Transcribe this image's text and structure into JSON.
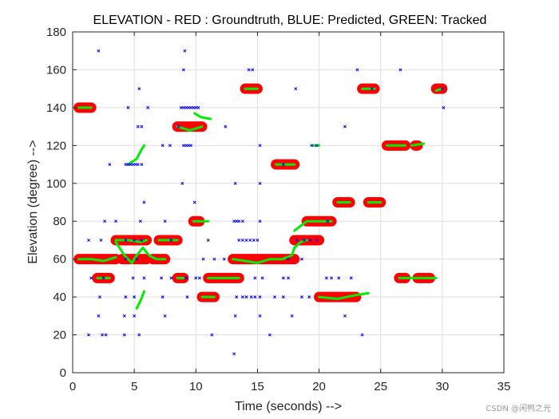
{
  "chart_data": {
    "type": "scatter",
    "title": "ELEVATION - RED : Groundtruth, BLUE: Predicted, GREEN: Tracked",
    "xlabel": "Time (seconds) -->",
    "ylabel": "Elevation (degree) -->",
    "xlim": [
      0,
      35
    ],
    "ylim": [
      0,
      180
    ],
    "xticks": [
      0,
      5,
      10,
      15,
      20,
      25,
      30,
      35
    ],
    "yticks": [
      0,
      20,
      40,
      60,
      80,
      100,
      120,
      140,
      160,
      180
    ],
    "grid": true,
    "colors": {
      "groundtruth": "#ff0000",
      "predicted": "#0000ff",
      "tracked": "#00ee00"
    },
    "series": [
      {
        "name": "Groundtruth",
        "color": "#ff0000",
        "segments": [
          {
            "x": [
              0.5,
              1.5
            ],
            "y": 140
          },
          {
            "x": [
              0.5,
              3.5
            ],
            "y": 60
          },
          {
            "x": [
              2.0,
              3.0
            ],
            "y": 50
          },
          {
            "x": [
              3.5,
              6.0
            ],
            "y": 70
          },
          {
            "x": [
              4.0,
              6.0
            ],
            "y": 60
          },
          {
            "x": [
              6.5,
              7.5
            ],
            "y": 60
          },
          {
            "x": [
              7.0,
              8.5
            ],
            "y": 70
          },
          {
            "x": [
              8.5,
              9.0
            ],
            "y": 50
          },
          {
            "x": [
              8.5,
              10.5
            ],
            "y": 130
          },
          {
            "x": [
              9.8,
              10.3
            ],
            "y": 80
          },
          {
            "x": [
              10.5,
              11.5
            ],
            "y": 40
          },
          {
            "x": [
              11.0,
              13.5
            ],
            "y": 50
          },
          {
            "x": [
              13.0,
              18.0
            ],
            "y": 60
          },
          {
            "x": [
              14.0,
              15.0
            ],
            "y": 150
          },
          {
            "x": [
              16.5,
              18.0
            ],
            "y": 110
          },
          {
            "x": [
              18.0,
              20.0
            ],
            "y": 70
          },
          {
            "x": [
              19.0,
              21.0
            ],
            "y": 80
          },
          {
            "x": [
              20.0,
              23.0
            ],
            "y": 40
          },
          {
            "x": [
              21.5,
              22.5
            ],
            "y": 90
          },
          {
            "x": [
              23.5,
              24.5
            ],
            "y": 150
          },
          {
            "x": [
              24.0,
              25.0
            ],
            "y": 90
          },
          {
            "x": [
              25.5,
              27.0
            ],
            "y": 120
          },
          {
            "x": [
              26.5,
              27.0
            ],
            "y": 50
          },
          {
            "x": [
              27.8,
              28.0
            ],
            "y": 120
          },
          {
            "x": [
              28.0,
              29.0
            ],
            "y": 50
          },
          {
            "x": [
              29.5,
              30.0
            ],
            "y": 150
          }
        ]
      },
      {
        "name": "Predicted",
        "color": "#0000ff",
        "points": [
          [
            2.1,
            170
          ],
          [
            9.1,
            170
          ],
          [
            9.0,
            160
          ],
          [
            14.3,
            160
          ],
          [
            14.6,
            160
          ],
          [
            23.1,
            160
          ],
          [
            26.6,
            160
          ],
          [
            5.4,
            150
          ],
          [
            18.1,
            150
          ],
          [
            24.3,
            150
          ],
          [
            30.0,
            150
          ],
          [
            4.5,
            140
          ],
          [
            6.1,
            140
          ],
          [
            8.8,
            140
          ],
          [
            9.0,
            140
          ],
          [
            9.2,
            140
          ],
          [
            9.4,
            140
          ],
          [
            9.6,
            140
          ],
          [
            9.8,
            140
          ],
          [
            10.0,
            140
          ],
          [
            10.2,
            140
          ],
          [
            30.1,
            140
          ],
          [
            5.3,
            130
          ],
          [
            5.6,
            130
          ],
          [
            8.6,
            130
          ],
          [
            12.4,
            130
          ],
          [
            22.1,
            130
          ],
          [
            7.3,
            120
          ],
          [
            7.9,
            120
          ],
          [
            9.0,
            120
          ],
          [
            9.2,
            120
          ],
          [
            9.4,
            120
          ],
          [
            9.6,
            120
          ],
          [
            15.2,
            120
          ],
          [
            19.4,
            120
          ],
          [
            19.8,
            120
          ],
          [
            3.0,
            110
          ],
          [
            4.3,
            110
          ],
          [
            4.5,
            110
          ],
          [
            4.7,
            110
          ],
          [
            4.9,
            110
          ],
          [
            5.1,
            110
          ],
          [
            5.3,
            110
          ],
          [
            5.6,
            110
          ],
          [
            17.1,
            110
          ],
          [
            8.9,
            100
          ],
          [
            13.2,
            100
          ],
          [
            15.2,
            100
          ],
          [
            5.8,
            90
          ],
          [
            9.9,
            90
          ],
          [
            2.6,
            80
          ],
          [
            3.5,
            80
          ],
          [
            5.5,
            80
          ],
          [
            7.5,
            80
          ],
          [
            13.1,
            80
          ],
          [
            13.3,
            80
          ],
          [
            13.5,
            80
          ],
          [
            13.8,
            80
          ],
          [
            15.2,
            80
          ],
          [
            20.7,
            80
          ],
          [
            1.3,
            70
          ],
          [
            2.3,
            70
          ],
          [
            4.3,
            70
          ],
          [
            5.0,
            70
          ],
          [
            5.6,
            70
          ],
          [
            8.0,
            70
          ],
          [
            11.0,
            70
          ],
          [
            13.5,
            70
          ],
          [
            13.8,
            70
          ],
          [
            14.1,
            70
          ],
          [
            14.4,
            70
          ],
          [
            14.7,
            70
          ],
          [
            15.0,
            70
          ],
          [
            18.2,
            70
          ],
          [
            18.8,
            70
          ],
          [
            19.3,
            70
          ],
          [
            19.8,
            70
          ],
          [
            4.3,
            60
          ],
          [
            5.2,
            60
          ],
          [
            10.6,
            60
          ],
          [
            11.5,
            60
          ],
          [
            12.3,
            60
          ],
          [
            17.5,
            60
          ],
          [
            18.6,
            60
          ],
          [
            1.5,
            50
          ],
          [
            2.5,
            50
          ],
          [
            4.9,
            50
          ],
          [
            5.8,
            50
          ],
          [
            7.2,
            50
          ],
          [
            8.0,
            50
          ],
          [
            9.2,
            50
          ],
          [
            10.0,
            50
          ],
          [
            10.3,
            50
          ],
          [
            14.8,
            50
          ],
          [
            15.4,
            50
          ],
          [
            17.1,
            50
          ],
          [
            17.5,
            50
          ],
          [
            20.6,
            50
          ],
          [
            21.0,
            50
          ],
          [
            21.6,
            50
          ],
          [
            22.6,
            50
          ],
          [
            2.2,
            40
          ],
          [
            4.3,
            40
          ],
          [
            5.0,
            40
          ],
          [
            7.3,
            40
          ],
          [
            9.3,
            40
          ],
          [
            13.3,
            40
          ],
          [
            13.8,
            40
          ],
          [
            14.1,
            40
          ],
          [
            14.5,
            40
          ],
          [
            14.8,
            40
          ],
          [
            15.2,
            40
          ],
          [
            16.4,
            40
          ],
          [
            17.1,
            40
          ],
          [
            18.6,
            40
          ],
          [
            19.2,
            40
          ],
          [
            2.1,
            30
          ],
          [
            4.2,
            30
          ],
          [
            5.0,
            30
          ],
          [
            7.5,
            30
          ],
          [
            13.2,
            30
          ],
          [
            15.2,
            30
          ],
          [
            17.8,
            30
          ],
          [
            22.1,
            30
          ],
          [
            1.3,
            20
          ],
          [
            2.4,
            20
          ],
          [
            2.7,
            20
          ],
          [
            4.2,
            20
          ],
          [
            5.4,
            20
          ],
          [
            11.3,
            20
          ],
          [
            16.0,
            20
          ],
          [
            23.5,
            20
          ],
          [
            13.1,
            10
          ]
        ]
      },
      {
        "name": "Tracked",
        "color": "#00ee00",
        "lines": [
          [
            [
              0.5,
              140
            ],
            [
              1.5,
              140
            ]
          ],
          [
            [
              0.5,
              60
            ],
            [
              1.5,
              60
            ],
            [
              2.5,
              59
            ],
            [
              3.0,
              60
            ],
            [
              3.5,
              61
            ]
          ],
          [
            [
              2.0,
              50
            ],
            [
              3.0,
              50
            ]
          ],
          [
            [
              3.5,
              70
            ],
            [
              4.5,
              70
            ],
            [
              5.5,
              69
            ],
            [
              6.0,
              70
            ]
          ],
          [
            [
              3.5,
              69
            ],
            [
              4.2,
              62
            ],
            [
              4.8,
              58
            ],
            [
              5.2,
              62
            ],
            [
              5.7,
              66
            ],
            [
              6.2,
              62
            ],
            [
              6.8,
              60
            ],
            [
              7.5,
              60
            ]
          ],
          [
            [
              7.0,
              70
            ],
            [
              8.5,
              70
            ]
          ],
          [
            [
              8.5,
              50
            ],
            [
              9.0,
              50
            ]
          ],
          [
            [
              4.5,
              110
            ],
            [
              5.2,
              113
            ],
            [
              5.6,
              118
            ],
            [
              5.8,
              120
            ]
          ],
          [
            [
              5.2,
              34
            ],
            [
              5.5,
              38
            ],
            [
              5.8,
              43
            ]
          ],
          [
            [
              8.5,
              130
            ],
            [
              9.5,
              128
            ],
            [
              10.5,
              130
            ]
          ],
          [
            [
              9.9,
              137
            ],
            [
              10.4,
              135
            ],
            [
              11.2,
              134
            ]
          ],
          [
            [
              9.8,
              80
            ],
            [
              11.0,
              80
            ]
          ],
          [
            [
              10.5,
              40
            ],
            [
              11.5,
              40
            ]
          ],
          [
            [
              11.0,
              50
            ],
            [
              13.5,
              50
            ]
          ],
          [
            [
              13.0,
              60
            ],
            [
              14.0,
              59
            ],
            [
              15.0,
              58
            ],
            [
              16.0,
              60
            ],
            [
              17.0,
              60
            ],
            [
              17.8,
              62
            ],
            [
              18.0,
              66
            ],
            [
              18.5,
              69
            ],
            [
              19.0,
              70
            ]
          ],
          [
            [
              14.0,
              150
            ],
            [
              15.0,
              150
            ]
          ],
          [
            [
              16.5,
              110
            ],
            [
              18.0,
              110
            ]
          ],
          [
            [
              18.0,
              75
            ],
            [
              19.0,
              80
            ],
            [
              21.0,
              80
            ]
          ],
          [
            [
              19.5,
              120
            ],
            [
              20.0,
              120
            ]
          ],
          [
            [
              20.0,
              40
            ],
            [
              21.5,
              39
            ],
            [
              23.0,
              41
            ],
            [
              24.0,
              42
            ]
          ],
          [
            [
              21.5,
              90
            ],
            [
              22.5,
              90
            ]
          ],
          [
            [
              23.5,
              150
            ],
            [
              24.5,
              150
            ]
          ],
          [
            [
              24.0,
              90
            ],
            [
              25.0,
              90
            ]
          ],
          [
            [
              25.5,
              120
            ],
            [
              27.0,
              120
            ]
          ],
          [
            [
              27.5,
              120
            ],
            [
              28.5,
              121
            ]
          ],
          [
            [
              26.5,
              50
            ],
            [
              29.5,
              50
            ]
          ],
          [
            [
              29.5,
              149
            ],
            [
              30.0,
              150
            ]
          ]
        ]
      }
    ]
  },
  "watermark": "CSDN @闲鸭之光"
}
